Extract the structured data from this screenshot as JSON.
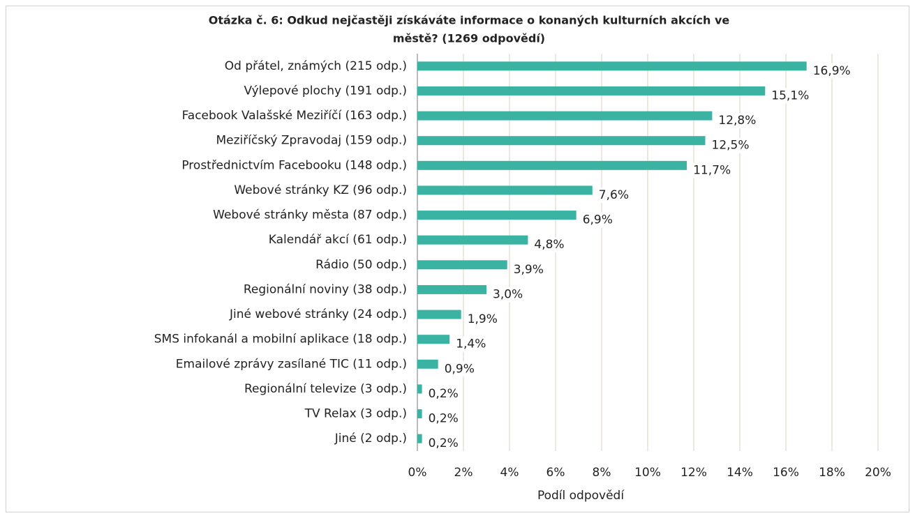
{
  "chart_data": {
    "type": "bar",
    "orientation": "horizontal",
    "title": [
      "Otázka č. 6: Odkud nejčastěji získáváte informace o konaných kulturních akcích ve",
      "městě? (1269 odpovědí)"
    ],
    "categories": [
      "Od přátel, známých (215 odp.)",
      "Výlepové plochy (191 odp.)",
      "Facebook Valašské Meziříčí (163 odp.)",
      "Meziříčský Zpravodaj (159 odp.)",
      "Prostřednictvím Facebooku (148 odp.)",
      "Webové stránky KZ (96 odp.)",
      "Webové stránky města (87 odp.)",
      "Kalendář akcí (61 odp.)",
      "Rádio (50 odp.)",
      "Regionální noviny (38 odp.)",
      "Jiné webové stránky (24 odp.)",
      "SMS infokanál a mobilní aplikace (18 odp.)",
      "Emailové zprávy zasílané TIC (11 odp.)",
      "Regionální televize (3 odp.)",
      "TV Relax (3 odp.)",
      "Jiné (2 odp.)"
    ],
    "values": [
      16.9,
      15.1,
      12.8,
      12.5,
      11.7,
      7.6,
      6.9,
      4.8,
      3.9,
      3.0,
      1.9,
      1.4,
      0.9,
      0.2,
      0.2,
      0.2
    ],
    "value_labels": [
      "16,9%",
      "15,1%",
      "12,8%",
      "12,5%",
      "11,7%",
      "7,6%",
      "6,9%",
      "4,8%",
      "3,9%",
      "3,0%",
      "1,9%",
      "1,4%",
      "0,9%",
      "0,2%",
      "0,2%",
      "0,2%"
    ],
    "color": "#3bb3a3",
    "xlabel": "Podíl odpovědí",
    "xlim": [
      0,
      20
    ],
    "xticks": [
      {
        "value": 0,
        "label": "0%"
      },
      {
        "value": 2,
        "label": "2%"
      },
      {
        "value": 4,
        "label": "4%"
      },
      {
        "value": 6,
        "label": "6%"
      },
      {
        "value": 8,
        "label": "8%"
      },
      {
        "value": 10,
        "label": "10%"
      },
      {
        "value": 12,
        "label": "12%"
      },
      {
        "value": 14,
        "label": "14%"
      },
      {
        "value": 16,
        "label": "16%"
      },
      {
        "value": 18,
        "label": "18%"
      },
      {
        "value": 20,
        "label": "20%"
      }
    ],
    "grid": true
  }
}
